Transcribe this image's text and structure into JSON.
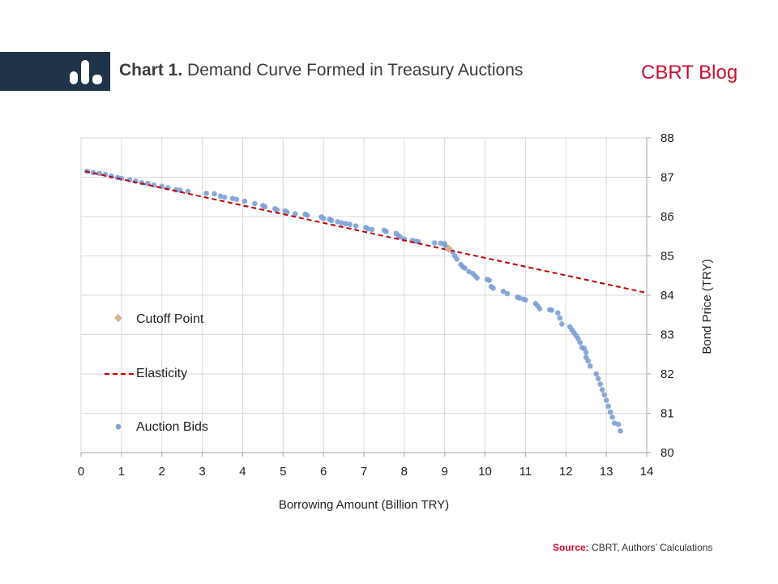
{
  "header": {
    "chart_number": "Chart 1.",
    "title": "Demand Curve Formed in Treasury Auctions",
    "brand": "CBRT Blog",
    "icon": "bar-chart-icon",
    "band_color": "#1f3349",
    "brand_color": "#c8102e"
  },
  "source": {
    "label": "Source:",
    "text": "CBRT, Authors’ Calculations"
  },
  "chart_data": {
    "type": "scatter",
    "xlabel": "Borrowing Amount (Billion TRY)",
    "ylabel": "Bond Price (TRY)",
    "xlim": [
      0,
      14
    ],
    "ylim": [
      80,
      88
    ],
    "xticks": [
      0,
      1,
      2,
      3,
      4,
      5,
      6,
      7,
      8,
      9,
      10,
      11,
      12,
      13,
      14
    ],
    "yticks": [
      80,
      81,
      82,
      83,
      84,
      85,
      86,
      87,
      88
    ],
    "y_axis_side": "right",
    "grid": true,
    "legend_position": "left-middle",
    "series": [
      {
        "name": "Auction Bids",
        "type": "scatter",
        "color": "#7da0d4",
        "points": [
          [
            0.15,
            87.15
          ],
          [
            0.3,
            87.12
          ],
          [
            0.45,
            87.1
          ],
          [
            0.6,
            87.07
          ],
          [
            0.75,
            87.03
          ],
          [
            0.9,
            86.99
          ],
          [
            1.0,
            86.97
          ],
          [
            1.2,
            86.93
          ],
          [
            1.35,
            86.9
          ],
          [
            1.5,
            86.86
          ],
          [
            1.65,
            86.84
          ],
          [
            1.8,
            86.8
          ],
          [
            2.0,
            86.77
          ],
          [
            2.15,
            86.73
          ],
          [
            2.35,
            86.68
          ],
          [
            2.45,
            86.67
          ],
          [
            2.65,
            86.64
          ],
          [
            3.1,
            86.59
          ],
          [
            3.3,
            86.58
          ],
          [
            3.45,
            86.52
          ],
          [
            3.55,
            86.49
          ],
          [
            3.75,
            86.46
          ],
          [
            3.85,
            86.44
          ],
          [
            4.05,
            86.39
          ],
          [
            4.3,
            86.33
          ],
          [
            4.5,
            86.28
          ],
          [
            4.55,
            86.25
          ],
          [
            4.8,
            86.2
          ],
          [
            4.85,
            86.17
          ],
          [
            5.05,
            86.14
          ],
          [
            5.1,
            86.11
          ],
          [
            5.3,
            86.07
          ],
          [
            5.55,
            86.06
          ],
          [
            5.6,
            86.03
          ],
          [
            5.95,
            85.99
          ],
          [
            6.0,
            85.95
          ],
          [
            6.15,
            85.93
          ],
          [
            6.2,
            85.9
          ],
          [
            6.35,
            85.87
          ],
          [
            6.45,
            85.84
          ],
          [
            6.55,
            85.82
          ],
          [
            6.65,
            85.8
          ],
          [
            6.8,
            85.76
          ],
          [
            7.05,
            85.72
          ],
          [
            7.1,
            85.69
          ],
          [
            7.2,
            85.67
          ],
          [
            7.5,
            85.65
          ],
          [
            7.55,
            85.62
          ],
          [
            7.8,
            85.57
          ],
          [
            7.85,
            85.52
          ],
          [
            7.9,
            85.48
          ],
          [
            8.0,
            85.43
          ],
          [
            8.2,
            85.39
          ],
          [
            8.3,
            85.37
          ],
          [
            8.35,
            85.36
          ],
          [
            8.75,
            85.33
          ],
          [
            8.9,
            85.32
          ],
          [
            9.0,
            85.31
          ],
          [
            9.0,
            85.28
          ],
          [
            9.05,
            85.22
          ],
          [
            9.2,
            85.1
          ],
          [
            9.25,
            85.0
          ],
          [
            9.3,
            84.92
          ],
          [
            9.4,
            84.78
          ],
          [
            9.45,
            84.72
          ],
          [
            9.5,
            84.69
          ],
          [
            9.6,
            84.6
          ],
          [
            9.7,
            84.55
          ],
          [
            9.75,
            84.5
          ],
          [
            9.8,
            84.44
          ],
          [
            10.05,
            84.4
          ],
          [
            10.1,
            84.38
          ],
          [
            10.15,
            84.22
          ],
          [
            10.2,
            84.18
          ],
          [
            10.45,
            84.1
          ],
          [
            10.55,
            84.04
          ],
          [
            10.8,
            83.95
          ],
          [
            10.85,
            83.93
          ],
          [
            10.95,
            83.9
          ],
          [
            11.0,
            83.88
          ],
          [
            11.25,
            83.79
          ],
          [
            11.3,
            83.73
          ],
          [
            11.35,
            83.66
          ],
          [
            11.6,
            83.63
          ],
          [
            11.65,
            83.62
          ],
          [
            11.8,
            83.55
          ],
          [
            11.85,
            83.42
          ],
          [
            11.9,
            83.27
          ],
          [
            12.1,
            83.2
          ],
          [
            12.15,
            83.12
          ],
          [
            12.2,
            83.05
          ],
          [
            12.25,
            82.98
          ],
          [
            12.3,
            82.9
          ],
          [
            12.35,
            82.8
          ],
          [
            12.4,
            82.67
          ],
          [
            12.45,
            82.65
          ],
          [
            12.5,
            82.55
          ],
          [
            12.5,
            82.42
          ],
          [
            12.55,
            82.33
          ],
          [
            12.6,
            82.2
          ],
          [
            12.75,
            82.0
          ],
          [
            12.8,
            81.88
          ],
          [
            12.85,
            81.74
          ],
          [
            12.9,
            81.6
          ],
          [
            12.95,
            81.47
          ],
          [
            13.0,
            81.33
          ],
          [
            13.05,
            81.18
          ],
          [
            13.1,
            81.03
          ],
          [
            13.15,
            80.9
          ],
          [
            13.2,
            80.75
          ],
          [
            13.3,
            80.72
          ],
          [
            13.35,
            80.55
          ]
        ]
      },
      {
        "name": "Elasticity",
        "type": "line",
        "style": "dashed",
        "color": "#c00000",
        "points": [
          [
            0.1,
            87.15
          ],
          [
            14.0,
            84.06
          ]
        ]
      },
      {
        "name": "Cutoff Point",
        "type": "scatter",
        "marker": "diamond",
        "color": "#d6b390",
        "points": [
          [
            9.1,
            85.18
          ]
        ]
      }
    ],
    "legend": [
      {
        "name": "Cutoff Point",
        "marker": "diamond"
      },
      {
        "name": "Elasticity",
        "marker": "dashed-line"
      },
      {
        "name": "Auction Bids",
        "marker": "dot"
      }
    ]
  }
}
